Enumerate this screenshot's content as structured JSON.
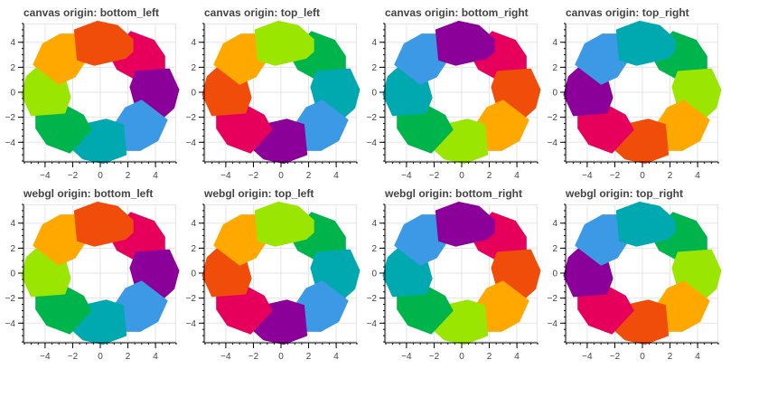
{
  "chart_data": [
    {
      "type": "polygon",
      "title": "canvas origin: bottom_left",
      "backend": "canvas",
      "origin": "bottom_left",
      "x_range": [
        -5.5,
        5.5
      ],
      "y_range": [
        -5.5,
        5.5
      ],
      "x_ticks": [
        -4,
        -2,
        0,
        2,
        4
      ],
      "y_ticks": [
        -4,
        -2,
        0,
        2,
        4
      ],
      "x_tick_labels": [
        "−4",
        "−2",
        "0",
        "2",
        "4"
      ],
      "y_tick_labels": [
        "−4",
        "−2",
        "0",
        "2",
        "4"
      ],
      "grid": true,
      "colors": [
        "#E6005C",
        "#8A0099",
        "#3C99E6",
        "#00A8B0",
        "#00B44C",
        "#9AE600",
        "#FFA800",
        "#F04D0A"
      ]
    },
    {
      "type": "polygon",
      "title": "canvas origin: top_left",
      "backend": "canvas",
      "origin": "top_left",
      "x_range": [
        -5.5,
        5.5
      ],
      "y_range": [
        -5.5,
        5.5
      ],
      "x_ticks": [
        -4,
        -2,
        0,
        2,
        4
      ],
      "y_ticks": [
        -4,
        -2,
        0,
        2,
        4
      ],
      "x_tick_labels": [
        "−4",
        "−2",
        "0",
        "2",
        "4"
      ],
      "y_tick_labels": [
        "−4",
        "−2",
        "0",
        "2",
        "4"
      ],
      "grid": true,
      "colors": [
        "#00B44C",
        "#00A8B0",
        "#3C99E6",
        "#8A0099",
        "#E6005C",
        "#F04D0A",
        "#FFA800",
        "#9AE600"
      ]
    },
    {
      "type": "polygon",
      "title": "canvas origin: bottom_right",
      "backend": "canvas",
      "origin": "bottom_right",
      "x_range": [
        -5.5,
        5.5
      ],
      "y_range": [
        -5.5,
        5.5
      ],
      "x_ticks": [
        -4,
        -2,
        0,
        2,
        4
      ],
      "y_ticks": [
        -4,
        -2,
        0,
        2,
        4
      ],
      "x_tick_labels": [
        "−4",
        "−2",
        "0",
        "2",
        "4"
      ],
      "y_tick_labels": [
        "−4",
        "−2",
        "0",
        "2",
        "4"
      ],
      "grid": true,
      "colors": [
        "#E6005C",
        "#F04D0A",
        "#FFA800",
        "#9AE600",
        "#00B44C",
        "#00A8B0",
        "#3C99E6",
        "#8A0099"
      ]
    },
    {
      "type": "polygon",
      "title": "canvas origin: top_right",
      "backend": "canvas",
      "origin": "top_right",
      "x_range": [
        -5.5,
        5.5
      ],
      "y_range": [
        -5.5,
        5.5
      ],
      "x_ticks": [
        -4,
        -2,
        0,
        2,
        4
      ],
      "y_ticks": [
        -4,
        -2,
        0,
        2,
        4
      ],
      "x_tick_labels": [
        "−4",
        "−2",
        "0",
        "2",
        "4"
      ],
      "y_tick_labels": [
        "−4",
        "−2",
        "0",
        "2",
        "4"
      ],
      "grid": true,
      "colors": [
        "#00B44C",
        "#9AE600",
        "#FFA800",
        "#F04D0A",
        "#E6005C",
        "#8A0099",
        "#3C99E6",
        "#00A8B0"
      ]
    },
    {
      "type": "polygon",
      "title": "webgl origin: bottom_left",
      "backend": "webgl",
      "origin": "bottom_left",
      "x_range": [
        -5.5,
        5.5
      ],
      "y_range": [
        -5.5,
        5.5
      ],
      "x_ticks": [
        -4,
        -2,
        0,
        2,
        4
      ],
      "y_ticks": [
        -4,
        -2,
        0,
        2,
        4
      ],
      "x_tick_labels": [
        "−4",
        "−2",
        "0",
        "2",
        "4"
      ],
      "y_tick_labels": [
        "−4",
        "−2",
        "0",
        "2",
        "4"
      ],
      "grid": true,
      "colors": [
        "#E6005C",
        "#8A0099",
        "#3C99E6",
        "#00A8B0",
        "#00B44C",
        "#9AE600",
        "#FFA800",
        "#F04D0A"
      ]
    },
    {
      "type": "polygon",
      "title": "webgl origin: top_left",
      "backend": "webgl",
      "origin": "top_left",
      "x_range": [
        -5.5,
        5.5
      ],
      "y_range": [
        -5.5,
        5.5
      ],
      "x_ticks": [
        -4,
        -2,
        0,
        2,
        4
      ],
      "y_ticks": [
        -4,
        -2,
        0,
        2,
        4
      ],
      "x_tick_labels": [
        "−4",
        "−2",
        "0",
        "2",
        "4"
      ],
      "y_tick_labels": [
        "−4",
        "−2",
        "0",
        "2",
        "4"
      ],
      "grid": true,
      "colors": [
        "#00B44C",
        "#00A8B0",
        "#3C99E6",
        "#8A0099",
        "#E6005C",
        "#F04D0A",
        "#FFA800",
        "#9AE600"
      ]
    },
    {
      "type": "polygon",
      "title": "webgl origin: bottom_right",
      "backend": "webgl",
      "origin": "bottom_right",
      "x_range": [
        -5.5,
        5.5
      ],
      "y_range": [
        -5.5,
        5.5
      ],
      "x_ticks": [
        -4,
        -2,
        0,
        2,
        4
      ],
      "y_ticks": [
        -4,
        -2,
        0,
        2,
        4
      ],
      "x_tick_labels": [
        "−4",
        "−2",
        "0",
        "2",
        "4"
      ],
      "y_tick_labels": [
        "−4",
        "−2",
        "0",
        "2",
        "4"
      ],
      "grid": true,
      "colors": [
        "#E6005C",
        "#F04D0A",
        "#FFA800",
        "#9AE600",
        "#00B44C",
        "#00A8B0",
        "#3C99E6",
        "#8A0099"
      ]
    },
    {
      "type": "polygon",
      "title": "webgl origin: top_right",
      "backend": "webgl",
      "origin": "top_right",
      "x_range": [
        -5.5,
        5.5
      ],
      "y_range": [
        -5.5,
        5.5
      ],
      "x_ticks": [
        -4,
        -2,
        0,
        2,
        4
      ],
      "y_ticks": [
        -4,
        -2,
        0,
        2,
        4
      ],
      "x_tick_labels": [
        "−4",
        "−2",
        "0",
        "2",
        "4"
      ],
      "y_tick_labels": [
        "−4",
        "−2",
        "0",
        "2",
        "4"
      ],
      "grid": true,
      "colors": [
        "#00B44C",
        "#9AE600",
        "#FFA800",
        "#F04D0A",
        "#E6005C",
        "#8A0099",
        "#3C99E6",
        "#00A8B0"
      ]
    }
  ]
}
